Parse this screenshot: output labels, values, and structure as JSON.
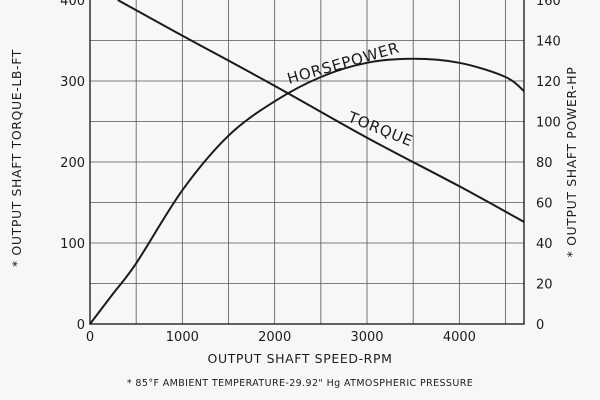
{
  "chart_data": {
    "type": "line",
    "x": {
      "label": "OUTPUT SHAFT SPEED-RPM",
      "lim": [
        0,
        4700
      ],
      "ticks": [
        0,
        1000,
        2000,
        3000,
        4000
      ],
      "tick_labels": [
        "0",
        "1000",
        "2000",
        "3000",
        "4000"
      ]
    },
    "y_left": {
      "label": "* OUTPUT SHAFT TORQUE-LB-FT",
      "lim": [
        0,
        400
      ],
      "ticks": [
        0,
        100,
        200,
        300,
        400
      ],
      "tick_labels": [
        "0",
        "100",
        "200",
        "300",
        "400"
      ]
    },
    "y_right": {
      "label": "* OUTPUT SHAFT POWER-HP",
      "lim": [
        0,
        160
      ],
      "ticks": [
        0,
        20,
        40,
        60,
        80,
        100,
        120,
        140,
        160
      ],
      "tick_labels": [
        "0",
        "20",
        "40",
        "60",
        "80",
        "100",
        "120",
        "140",
        "160"
      ]
    },
    "grid": true,
    "series": [
      {
        "name": "TORQUE",
        "axis": "left",
        "x": [
          300,
          1000,
          2000,
          3000,
          4000,
          4700
        ],
        "values": [
          400,
          356,
          294,
          230,
          170,
          126
        ]
      },
      {
        "name": "HORSEPOWER",
        "axis": "right",
        "x": [
          0,
          250,
          500,
          1000,
          1500,
          2000,
          2500,
          3000,
          3500,
          4000,
          4500,
          4700
        ],
        "values": [
          0,
          15,
          30,
          66,
          93,
          110,
          122,
          129,
          131,
          129,
          122,
          115
        ]
      }
    ],
    "footnote": "* 85°F AMBIENT TEMPERATURE-29.92\" Hg ATMOSPHERIC PRESSURE"
  }
}
